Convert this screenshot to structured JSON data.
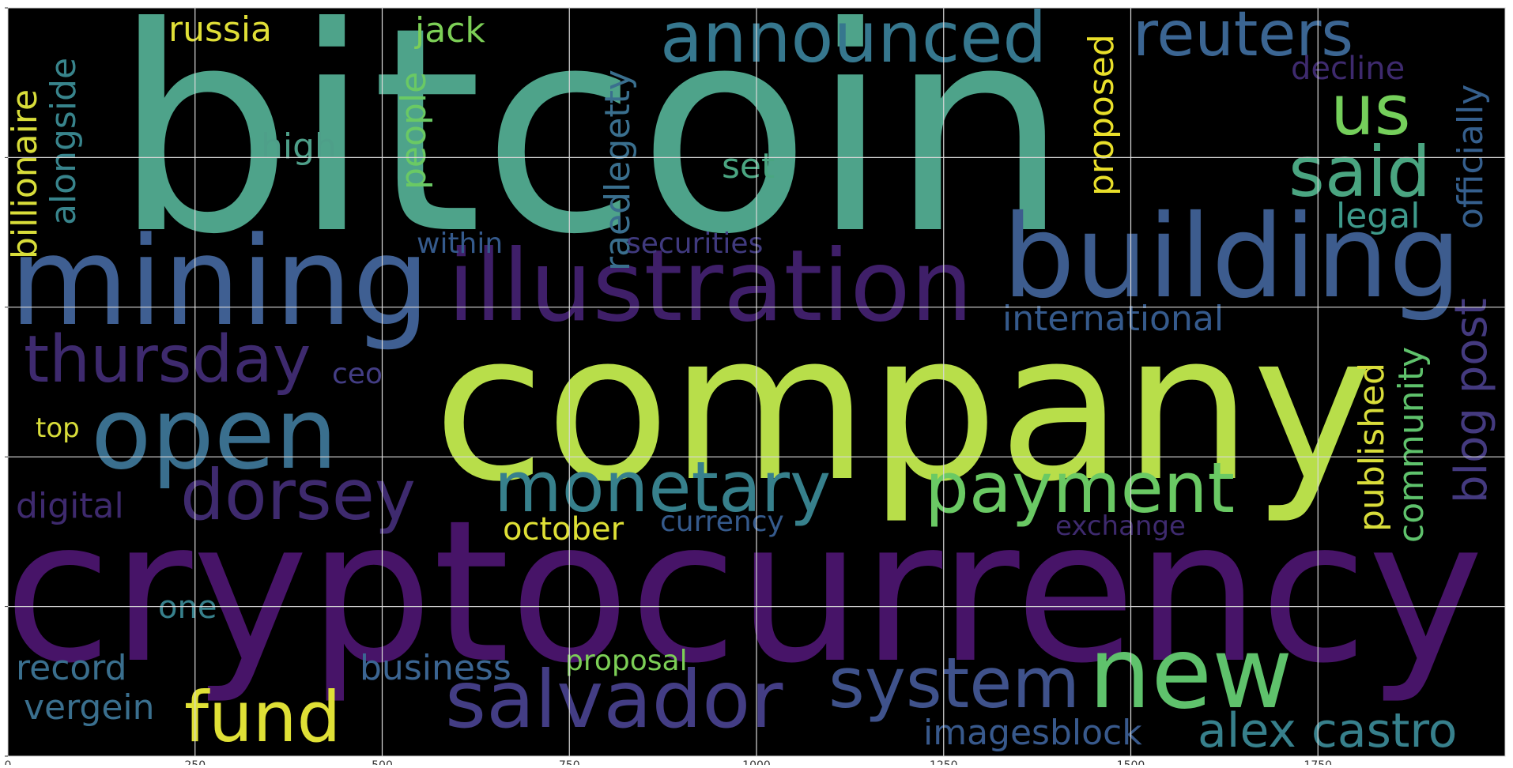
{
  "chart_data": {
    "type": "wordcloud",
    "title": "",
    "xlabel": "",
    "ylabel": "",
    "xlim": [
      0,
      2000
    ],
    "ylim": [
      1000,
      0
    ],
    "grid": true,
    "background": "#000000",
    "xticks": [
      0,
      250,
      500,
      750,
      1000,
      1250,
      1500,
      1750
    ],
    "yticks": [
      0,
      200,
      400,
      600,
      800,
      1000
    ],
    "words": [
      {
        "text": "bitcoin",
        "weight": 1.0,
        "color": "#4ea38a"
      },
      {
        "text": "company",
        "weight": 0.86,
        "color": "#b8de4a"
      },
      {
        "text": "cryptocurrency",
        "weight": 0.83,
        "color": "#471468"
      },
      {
        "text": "mining",
        "weight": 0.52,
        "color": "#3f5f92"
      },
      {
        "text": "building",
        "weight": 0.48,
        "color": "#3d5c8e"
      },
      {
        "text": "illustration",
        "weight": 0.42,
        "color": "#3f1f69"
      },
      {
        "text": "open",
        "weight": 0.42,
        "color": "#3a6f8e"
      },
      {
        "text": "new",
        "weight": 0.42,
        "color": "#5fc26c"
      },
      {
        "text": "salvador",
        "weight": 0.34,
        "color": "#433d84"
      },
      {
        "text": "announced",
        "weight": 0.3,
        "color": "#36778e"
      },
      {
        "text": "system",
        "weight": 0.3,
        "color": "#3f528b"
      },
      {
        "text": "monetary",
        "weight": 0.3,
        "color": "#37808c"
      },
      {
        "text": "payment",
        "weight": 0.3,
        "color": "#6ac964"
      },
      {
        "text": "dorsey",
        "weight": 0.3,
        "color": "#3e2a6e"
      },
      {
        "text": "fund",
        "weight": 0.3,
        "color": "#dfe036"
      },
      {
        "text": "said",
        "weight": 0.3,
        "color": "#4aa581"
      },
      {
        "text": "us",
        "weight": 0.3,
        "color": "#75cf5b"
      },
      {
        "text": "thursday",
        "weight": 0.28,
        "color": "#3e2a6e"
      },
      {
        "text": "reuters",
        "weight": 0.26,
        "color": "#3b6592"
      },
      {
        "text": "alex castro",
        "weight": 0.22,
        "color": "#37808c"
      },
      {
        "text": "blog post",
        "weight": 0.19,
        "color": "#443a7f"
      },
      {
        "text": "officially",
        "weight": 0.19,
        "color": "#355f8d"
      },
      {
        "text": "international",
        "weight": 0.14,
        "color": "#355a8c"
      },
      {
        "text": "imagesblock",
        "weight": 0.14,
        "color": "#38598c"
      },
      {
        "text": "russia",
        "weight": 0.14,
        "color": "#e0df37"
      },
      {
        "text": "jack",
        "weight": 0.14,
        "color": "#7ccf56"
      },
      {
        "text": "people",
        "weight": 0.14,
        "color": "#6ac964"
      },
      {
        "text": "raedlegetty",
        "weight": 0.14,
        "color": "#3a6f8e"
      },
      {
        "text": "proposed",
        "weight": 0.14,
        "color": "#e9df2a"
      },
      {
        "text": "published",
        "weight": 0.14,
        "color": "#d9dd3a"
      },
      {
        "text": "community",
        "weight": 0.14,
        "color": "#5fc26c"
      },
      {
        "text": "legal",
        "weight": 0.14,
        "color": "#3e9a8b"
      },
      {
        "text": "billionaire",
        "weight": 0.14,
        "color": "#d8dd3a"
      },
      {
        "text": "alongside",
        "weight": 0.14,
        "color": "#38848c"
      },
      {
        "text": "business",
        "weight": 0.14,
        "color": "#3b6592"
      },
      {
        "text": "record",
        "weight": 0.14,
        "color": "#3a6f8e"
      },
      {
        "text": "vergein",
        "weight": 0.14,
        "color": "#3a6f8e"
      },
      {
        "text": "digital",
        "weight": 0.14,
        "color": "#3e2a6e"
      },
      {
        "text": "october",
        "weight": 0.14,
        "color": "#dfe036"
      },
      {
        "text": "high",
        "weight": 0.14,
        "color": "#4e9f89"
      },
      {
        "text": "set",
        "weight": 0.14,
        "color": "#4aa581"
      },
      {
        "text": "decline",
        "weight": 0.12,
        "color": "#3e2a6e"
      },
      {
        "text": "one",
        "weight": 0.12,
        "color": "#37808c"
      },
      {
        "text": "within",
        "weight": 0.1,
        "color": "#355a8c"
      },
      {
        "text": "securities",
        "weight": 0.1,
        "color": "#403a7e"
      },
      {
        "text": "currency",
        "weight": 0.1,
        "color": "#355a8c"
      },
      {
        "text": "exchange",
        "weight": 0.1,
        "color": "#3e2a6e"
      },
      {
        "text": "proposal",
        "weight": 0.1,
        "color": "#7ccf56"
      },
      {
        "text": "ceo",
        "weight": 0.1,
        "color": "#433d84"
      },
      {
        "text": "top",
        "weight": 0.1,
        "color": "#d8dd3a"
      }
    ]
  }
}
